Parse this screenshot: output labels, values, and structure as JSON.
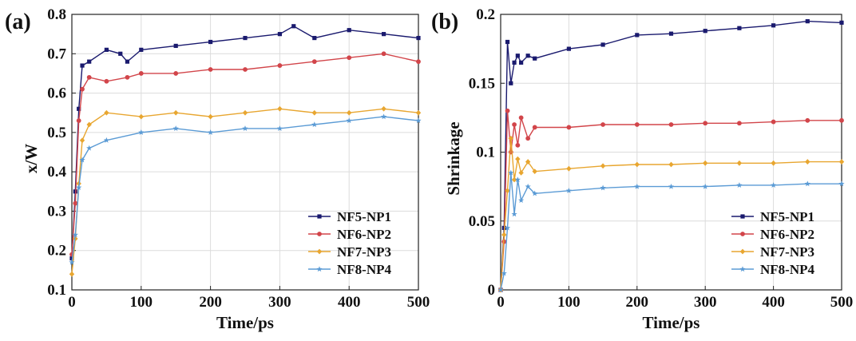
{
  "chart_data": [
    {
      "type": "line",
      "panel_label": "(a)",
      "xlabel": "Time/ps",
      "ylabel": "x/W",
      "xlim": [
        0,
        500
      ],
      "ylim": [
        0.1,
        0.8
      ],
      "xticks": [
        "0",
        "100",
        "200",
        "300",
        "400",
        "500"
      ],
      "yticks": [
        "0.1",
        "0.2",
        "0.3",
        "0.4",
        "0.5",
        "0.6",
        "0.7",
        "0.8"
      ],
      "grid": true,
      "legend_position": "bottom-right",
      "series": [
        {
          "name": "NF5-NP1",
          "color": "#1a1a6e",
          "marker": "square",
          "x": [
            0,
            5,
            10,
            15,
            25,
            50,
            70,
            80,
            100,
            150,
            200,
            250,
            300,
            320,
            350,
            400,
            450,
            500
          ],
          "y": [
            0.18,
            0.35,
            0.56,
            0.67,
            0.68,
            0.71,
            0.7,
            0.68,
            0.71,
            0.72,
            0.73,
            0.74,
            0.75,
            0.77,
            0.74,
            0.76,
            0.75,
            0.74
          ]
        },
        {
          "name": "NF6-NP2",
          "color": "#d2454a",
          "marker": "circle",
          "x": [
            0,
            5,
            10,
            15,
            25,
            50,
            80,
            100,
            150,
            200,
            250,
            300,
            350,
            400,
            450,
            500
          ],
          "y": [
            0.19,
            0.32,
            0.53,
            0.61,
            0.64,
            0.63,
            0.64,
            0.65,
            0.65,
            0.66,
            0.66,
            0.67,
            0.68,
            0.69,
            0.7,
            0.68
          ]
        },
        {
          "name": "NF7-NP3",
          "color": "#e8a630",
          "marker": "diamond",
          "x": [
            0,
            5,
            10,
            15,
            25,
            50,
            100,
            150,
            200,
            250,
            300,
            350,
            400,
            450,
            500
          ],
          "y": [
            0.14,
            0.23,
            0.37,
            0.48,
            0.52,
            0.55,
            0.54,
            0.55,
            0.54,
            0.55,
            0.56,
            0.55,
            0.55,
            0.56,
            0.55
          ]
        },
        {
          "name": "NF8-NP4",
          "color": "#5b9bd5",
          "marker": "star",
          "x": [
            0,
            5,
            10,
            15,
            25,
            50,
            100,
            150,
            200,
            250,
            300,
            350,
            400,
            450,
            500
          ],
          "y": [
            0.17,
            0.24,
            0.36,
            0.43,
            0.46,
            0.48,
            0.5,
            0.51,
            0.5,
            0.51,
            0.51,
            0.52,
            0.53,
            0.54,
            0.53
          ]
        }
      ]
    },
    {
      "type": "line",
      "panel_label": "(b)",
      "xlabel": "Time/ps",
      "ylabel": "Shrinkage",
      "xlim": [
        0,
        500
      ],
      "ylim": [
        0,
        0.2
      ],
      "xticks": [
        "0",
        "100",
        "200",
        "300",
        "400",
        "500"
      ],
      "yticks": [
        "0",
        "0.05",
        "0.1",
        "0.15",
        "0.2"
      ],
      "grid": true,
      "legend_position": "bottom-right",
      "series": [
        {
          "name": "NF5-NP1",
          "color": "#1a1a6e",
          "marker": "square",
          "x": [
            0,
            5,
            10,
            15,
            20,
            25,
            30,
            40,
            50,
            100,
            150,
            200,
            250,
            300,
            350,
            400,
            450,
            500
          ],
          "y": [
            0,
            0.045,
            0.18,
            0.15,
            0.165,
            0.17,
            0.165,
            0.17,
            0.168,
            0.175,
            0.178,
            0.185,
            0.186,
            0.188,
            0.19,
            0.192,
            0.195,
            0.194
          ]
        },
        {
          "name": "NF6-NP2",
          "color": "#d2454a",
          "marker": "circle",
          "x": [
            0,
            5,
            10,
            15,
            20,
            25,
            30,
            40,
            50,
            100,
            150,
            200,
            250,
            300,
            350,
            400,
            450,
            500
          ],
          "y": [
            0,
            0.035,
            0.13,
            0.1,
            0.12,
            0.105,
            0.125,
            0.11,
            0.118,
            0.118,
            0.12,
            0.12,
            0.12,
            0.121,
            0.121,
            0.122,
            0.123,
            0.123
          ]
        },
        {
          "name": "NF7-NP3",
          "color": "#e8a630",
          "marker": "diamond",
          "x": [
            0,
            5,
            10,
            15,
            20,
            25,
            30,
            40,
            50,
            100,
            150,
            200,
            250,
            300,
            350,
            400,
            450,
            500
          ],
          "y": [
            0,
            0.04,
            0.072,
            0.11,
            0.08,
            0.095,
            0.085,
            0.093,
            0.086,
            0.088,
            0.09,
            0.091,
            0.091,
            0.092,
            0.092,
            0.092,
            0.093,
            0.093
          ]
        },
        {
          "name": "NF8-NP4",
          "color": "#5b9bd5",
          "marker": "star",
          "x": [
            0,
            5,
            10,
            15,
            20,
            25,
            30,
            40,
            50,
            100,
            150,
            200,
            250,
            300,
            350,
            400,
            450,
            500
          ],
          "y": [
            0,
            0.012,
            0.045,
            0.085,
            0.055,
            0.08,
            0.065,
            0.075,
            0.07,
            0.072,
            0.074,
            0.075,
            0.075,
            0.075,
            0.076,
            0.076,
            0.077,
            0.077
          ]
        }
      ]
    }
  ]
}
